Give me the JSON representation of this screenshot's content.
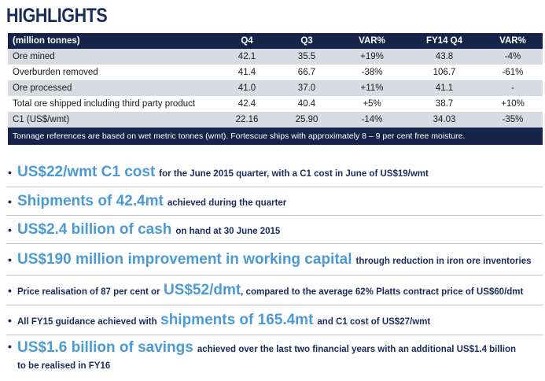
{
  "title": "HIGHLIGHTS",
  "table": {
    "headers": [
      "(million tonnes)",
      "Q4",
      "Q3",
      "VAR%",
      "FY14 Q4",
      "VAR%"
    ],
    "rows": [
      [
        "Ore mined",
        "42.1",
        "35.5",
        "+19%",
        "43.8",
        "-4%"
      ],
      [
        "Overburden removed",
        "41.4",
        "66.7",
        "-38%",
        "106.7",
        "-61%"
      ],
      [
        "Ore processed",
        "41.0",
        "37.0",
        "+11%",
        "41.1",
        "-"
      ],
      [
        "Total ore shipped including third party product",
        "42.4",
        "40.4",
        "+5%",
        "38.7",
        "+10%"
      ],
      [
        "C1 (US$/wmt)",
        "22.16",
        "25.90",
        "-14%",
        "34.03",
        "-35%"
      ]
    ],
    "footnote": "Tonnage references are based on wet metric tonnes (wmt).  Fortescue ships with approximately 8 – 9 per cent free moisture."
  },
  "bullets": [
    {
      "pre": "",
      "big": "US$22/wmt C1 cost",
      "post": "for the June 2015 quarter, with a C1 cost in June of US$19/wmt"
    },
    {
      "pre": "",
      "big": "Shipments of 42.4mt",
      "post": "achieved during the quarter"
    },
    {
      "pre": "",
      "big": "US$2.4 billion of cash",
      "post": "on hand at 30 June 2015"
    },
    {
      "pre": "",
      "big": "US$190 million improvement in working capital",
      "post": "through reduction in iron ore inventories"
    },
    {
      "pre": "Price realisation of 87 per cent or",
      "big": "US$52/dmt",
      "post": ", compared to the average 62% Platts contract price of US$60/dmt"
    },
    {
      "pre": "All FY15 guidance achieved with",
      "big": "shipments of 165.4mt",
      "post": "and C1 cost of US$27/wmt"
    },
    {
      "pre": "",
      "big": "US$1.6 billion of savings",
      "post": "achieved over the last two financial years with an additional US$1.4 billion",
      "line2": "to be realised in FY16"
    }
  ],
  "colors": {
    "navy": "#17244a",
    "accent": "#4a9ad6",
    "band": "#d8dbe3"
  }
}
